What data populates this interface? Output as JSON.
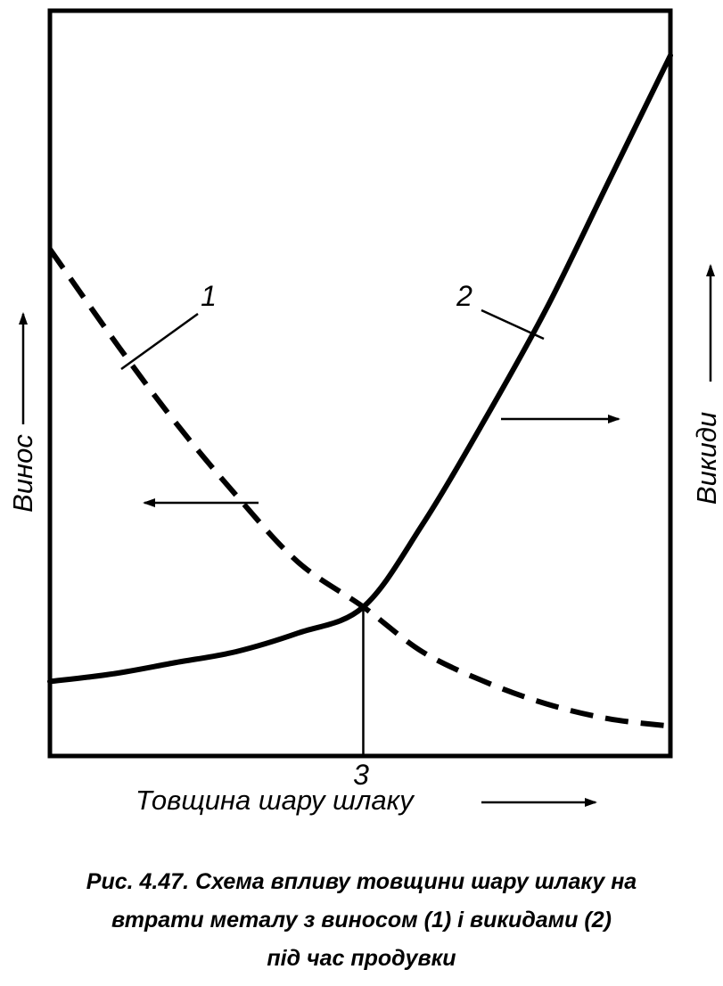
{
  "chart_data": {
    "type": "line",
    "xlabel": "Товщина шару шлаку",
    "ylabel_left": "Винос",
    "ylabel_right": "Викиди",
    "xlim": [
      0,
      1
    ],
    "ylim": [
      0,
      1
    ],
    "grid": false,
    "series": [
      {
        "name": "1",
        "style": "dashed",
        "axis": "left",
        "x": [
          0,
          0.11,
          0.2,
          0.3,
          0.4,
          0.505,
          0.6,
          0.7,
          0.8,
          0.9,
          1
        ],
        "y": [
          0.68,
          0.55,
          0.45,
          0.35,
          0.26,
          0.2,
          0.14,
          0.1,
          0.07,
          0.05,
          0.04
        ]
      },
      {
        "name": "2",
        "style": "solid",
        "axis": "right",
        "x": [
          0,
          0.1,
          0.2,
          0.3,
          0.4,
          0.505,
          0.6,
          0.7,
          0.8,
          0.9,
          1
        ],
        "y": [
          0.1,
          0.11,
          0.125,
          0.14,
          0.165,
          0.2,
          0.31,
          0.45,
          0.6,
          0.77,
          0.94
        ]
      }
    ],
    "annotations": [
      {
        "text": "1",
        "points_to_series": "1"
      },
      {
        "text": "2",
        "points_to_series": "2"
      },
      {
        "text": "3",
        "x": 0.505,
        "note": "intersection of curves"
      }
    ],
    "arrow_markers": [
      {
        "series": "1",
        "direction": "left"
      },
      {
        "series": "2",
        "direction": "right"
      }
    ]
  },
  "caption": {
    "line1": "Рис. 4.47. Схема впливу товщини шару шлаку на",
    "line2": "втрати металу з виносом (1) і викидами (2)",
    "line3": "під час продувки"
  },
  "colors": {
    "ink": "#000000",
    "paper": "#ffffff"
  }
}
